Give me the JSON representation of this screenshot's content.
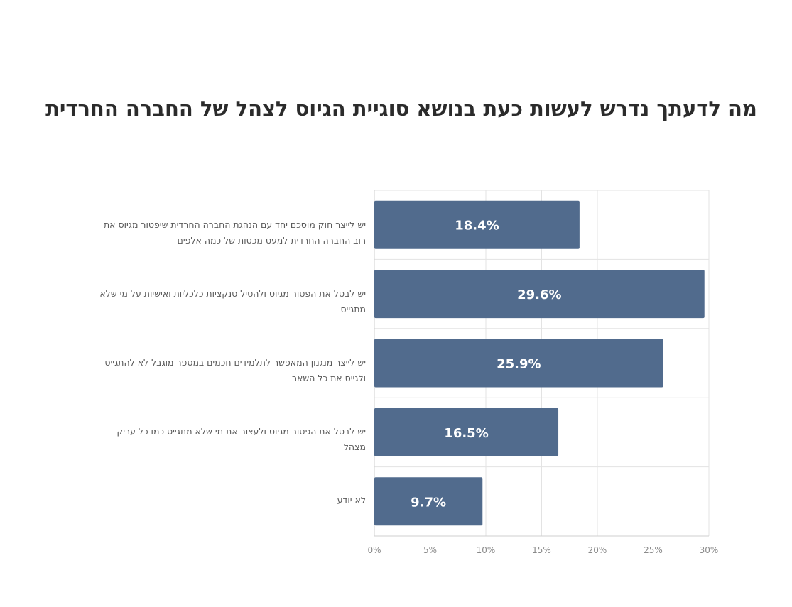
{
  "chart_data": {
    "type": "bar",
    "orientation": "horizontal",
    "title": "מה לדעתך נדרש לעשות כעת בנושא סוגיית הגיוס לצהל של החברה החרדית",
    "categories": [
      "יש לייצר חוק מוסכם יחד עם הנהגת החברה החרדית שיפטור מגיוס את רוב החברה החרדית למעט מכסות של כמה אלפים",
      "יש לבטל את הפטור מגיוס ולהטיל סנקציות כלכליות ואישיות על מי שלא מתגייס",
      "יש לייצר מנגנון המאפשר לתלמידים חכמים במספר מוגבל לא להתגייס ולגייס את כל השאר",
      "יש לבטל את הפטור מגיוס ולעצור את מי שלא מתגייס כמו כל עריק מצהל",
      "לא יודע"
    ],
    "values": [
      18.4,
      29.6,
      25.9,
      16.5,
      9.7
    ],
    "value_labels": [
      "18.4%",
      "29.6%",
      "25.9%",
      "16.5%",
      "9.7%"
    ],
    "xlim": [
      0,
      30
    ],
    "x_ticks": [
      0,
      5,
      10,
      15,
      20,
      25,
      30
    ],
    "x_tick_labels": [
      "0%",
      "5%",
      "10%",
      "15%",
      "20%",
      "25%",
      "30%"
    ],
    "grid": true,
    "legend": "none",
    "bar_color": "#516b8d",
    "grid_color": "#e3e3e3"
  }
}
